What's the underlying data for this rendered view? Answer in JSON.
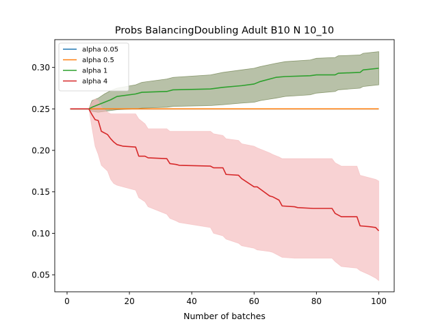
{
  "chart_data": {
    "type": "line",
    "title": "Probs BalancingDoubling Adult B10 N 10_10",
    "xlabel": "Number of batches",
    "ylabel": "",
    "xlim": [
      -3.95,
      104.95
    ],
    "ylim": [
      0.0295,
      0.3335
    ],
    "xticks": [
      0,
      20,
      40,
      60,
      80,
      100
    ],
    "yticks": [
      0.05,
      0.1,
      0.15,
      0.2,
      0.25,
      0.3
    ],
    "ytick_labels": [
      "0.05",
      "0.10",
      "0.15",
      "0.20",
      "0.25",
      "0.30"
    ],
    "grid": false,
    "legend_position": "top-left",
    "series": [
      {
        "name": "alpha 0.05",
        "color": "#1f77b4",
        "x": [
          1,
          100
        ],
        "y": [
          0.25,
          0.25
        ]
      },
      {
        "name": "alpha 0.5",
        "color": "#ff7f0e",
        "x": [
          1,
          100
        ],
        "y": [
          0.25,
          0.25
        ]
      },
      {
        "name": "alpha 1",
        "color": "#2ca02c",
        "band_color": "#556b2f",
        "x": [
          1,
          7,
          8,
          10,
          12,
          14,
          16,
          22,
          24,
          32,
          34,
          46,
          50,
          56,
          60,
          62,
          67,
          70,
          78,
          80,
          86,
          87,
          94,
          95,
          100
        ],
        "y": [
          0.25,
          0.25,
          0.252,
          0.255,
          0.258,
          0.261,
          0.265,
          0.268,
          0.27,
          0.271,
          0.273,
          0.274,
          0.276,
          0.278,
          0.28,
          0.283,
          0.288,
          0.289,
          0.29,
          0.291,
          0.291,
          0.293,
          0.294,
          0.297,
          0.299
        ],
        "lower": [
          0.25,
          0.25,
          0.247,
          0.246,
          0.247,
          0.248,
          0.249,
          0.25,
          0.251,
          0.252,
          0.253,
          0.254,
          0.255,
          0.257,
          0.258,
          0.26,
          0.263,
          0.265,
          0.267,
          0.269,
          0.271,
          0.273,
          0.275,
          0.277,
          0.279
        ],
        "upper": [
          0.25,
          0.25,
          0.26,
          0.263,
          0.268,
          0.272,
          0.275,
          0.279,
          0.282,
          0.286,
          0.288,
          0.291,
          0.294,
          0.297,
          0.299,
          0.301,
          0.305,
          0.307,
          0.309,
          0.311,
          0.312,
          0.314,
          0.315,
          0.317,
          0.319
        ]
      },
      {
        "name": "alpha 4",
        "color": "#d62728",
        "band_color": "#f4b6b8",
        "x": [
          1,
          7,
          8,
          9,
          10,
          11,
          13,
          14,
          15,
          16,
          18,
          22,
          23,
          25,
          26,
          32,
          33,
          35,
          36,
          46,
          47,
          50,
          51,
          55,
          56,
          60,
          61,
          65,
          66,
          68,
          69,
          73,
          74,
          79,
          80,
          85,
          86,
          88,
          93,
          94,
          97,
          99,
          100
        ],
        "y": [
          0.25,
          0.25,
          0.243,
          0.237,
          0.236,
          0.223,
          0.219,
          0.214,
          0.21,
          0.207,
          0.205,
          0.204,
          0.193,
          0.193,
          0.191,
          0.19,
          0.184,
          0.183,
          0.182,
          0.181,
          0.179,
          0.179,
          0.171,
          0.17,
          0.166,
          0.156,
          0.156,
          0.145,
          0.144,
          0.14,
          0.133,
          0.132,
          0.131,
          0.13,
          0.13,
          0.13,
          0.124,
          0.12,
          0.12,
          0.109,
          0.108,
          0.107,
          0.103
        ],
        "lower": [
          0.25,
          0.25,
          0.227,
          0.205,
          0.195,
          0.182,
          0.175,
          0.165,
          0.16,
          0.158,
          0.156,
          0.152,
          0.143,
          0.138,
          0.132,
          0.123,
          0.118,
          0.115,
          0.113,
          0.107,
          0.1,
          0.097,
          0.093,
          0.088,
          0.085,
          0.082,
          0.08,
          0.078,
          0.077,
          0.073,
          0.071,
          0.07,
          0.07,
          0.07,
          0.07,
          0.07,
          0.066,
          0.06,
          0.058,
          0.055,
          0.05,
          0.046,
          0.043
        ],
        "upper": [
          0.25,
          0.25,
          0.258,
          0.262,
          0.26,
          0.252,
          0.246,
          0.244,
          0.244,
          0.244,
          0.244,
          0.244,
          0.238,
          0.232,
          0.226,
          0.226,
          0.223,
          0.223,
          0.223,
          0.223,
          0.22,
          0.218,
          0.214,
          0.212,
          0.208,
          0.205,
          0.203,
          0.197,
          0.195,
          0.192,
          0.19,
          0.19,
          0.19,
          0.19,
          0.19,
          0.19,
          0.185,
          0.181,
          0.181,
          0.17,
          0.167,
          0.165,
          0.163
        ]
      }
    ]
  }
}
